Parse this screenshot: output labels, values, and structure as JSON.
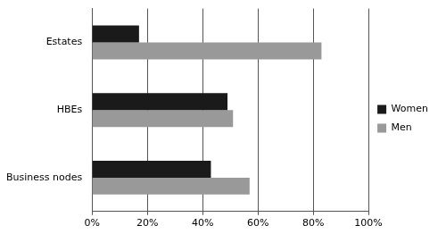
{
  "chart_data": {
    "type": "bar",
    "orientation": "horizontal",
    "categories": [
      "Estates",
      "HBEs",
      "Business nodes"
    ],
    "series": [
      {
        "name": "Women",
        "color": "#1a1a1a",
        "values": [
          17,
          49,
          43
        ]
      },
      {
        "name": "Men",
        "color": "#999999",
        "values": [
          83,
          51,
          57
        ]
      }
    ],
    "xlim": [
      0,
      100
    ],
    "xticks": [
      {
        "value": 0,
        "label": "0%"
      },
      {
        "value": 20,
        "label": "20%"
      },
      {
        "value": 40,
        "label": "40%"
      },
      {
        "value": 60,
        "label": "60%"
      },
      {
        "value": 80,
        "label": "80%"
      },
      {
        "value": 100,
        "label": "100%"
      }
    ],
    "grid": true,
    "legend": "right"
  }
}
